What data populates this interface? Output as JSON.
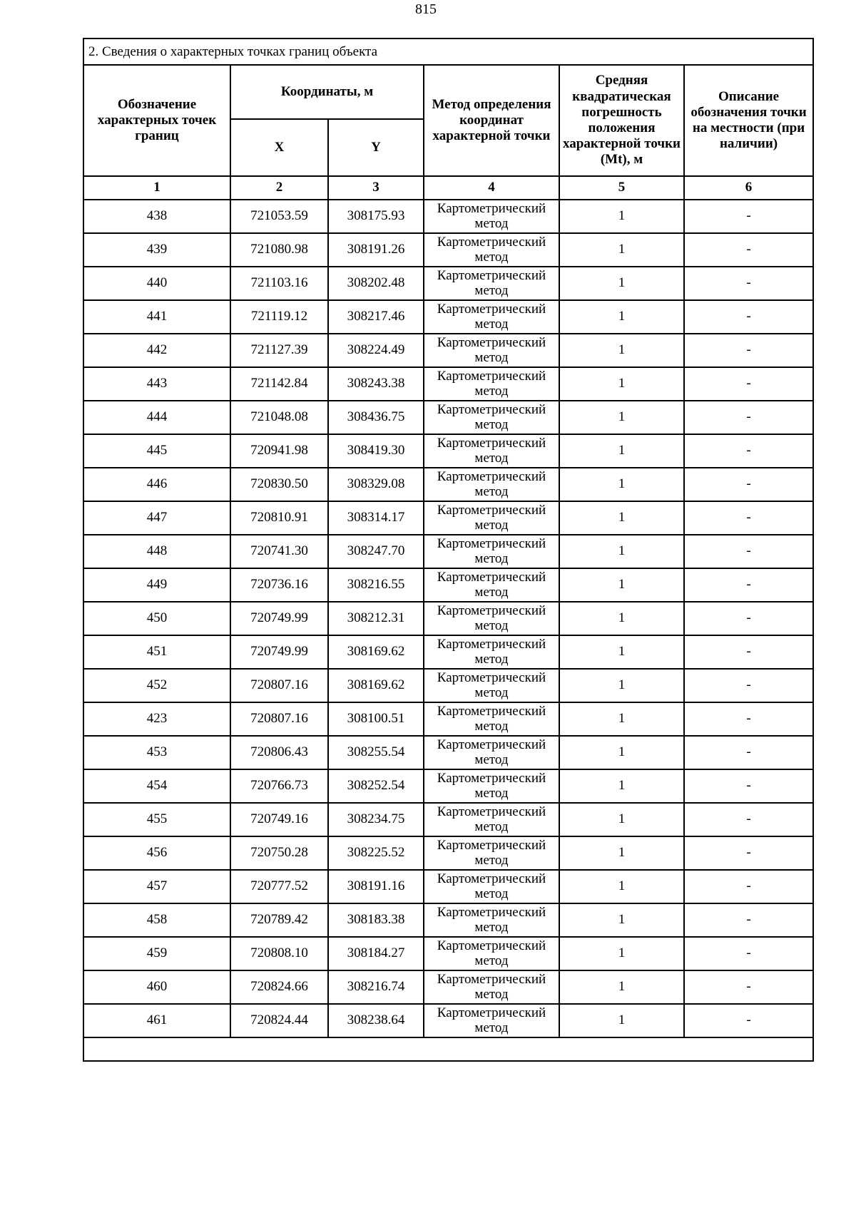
{
  "page": {
    "number": "815"
  },
  "table": {
    "title": "2. Сведения о характерных точках границ объекта",
    "headers": {
      "point": "Обозначение характерных точек границ",
      "coordinates": "Координаты, м",
      "x": "X",
      "y": "Y",
      "method": "Метод определения координат характерной точки",
      "mt": "Средняя квадратическая погрешность положения характерной точки (Mt), м",
      "description": "Описание обозначения точки на местности (при наличии)"
    },
    "column_numbers": [
      "1",
      "2",
      "3",
      "4",
      "5",
      "6"
    ],
    "rows": [
      {
        "point": "438",
        "x": "721053.59",
        "y": "308175.93",
        "method": "Картометрический метод",
        "mt": "1",
        "description": "-"
      },
      {
        "point": "439",
        "x": "721080.98",
        "y": "308191.26",
        "method": "Картометрический метод",
        "mt": "1",
        "description": "-"
      },
      {
        "point": "440",
        "x": "721103.16",
        "y": "308202.48",
        "method": "Картометрический метод",
        "mt": "1",
        "description": "-"
      },
      {
        "point": "441",
        "x": "721119.12",
        "y": "308217.46",
        "method": "Картометрический метод",
        "mt": "1",
        "description": "-"
      },
      {
        "point": "442",
        "x": "721127.39",
        "y": "308224.49",
        "method": "Картометрический метод",
        "mt": "1",
        "description": "-"
      },
      {
        "point": "443",
        "x": "721142.84",
        "y": "308243.38",
        "method": "Картометрический метод",
        "mt": "1",
        "description": "-"
      },
      {
        "point": "444",
        "x": "721048.08",
        "y": "308436.75",
        "method": "Картометрический метод",
        "mt": "1",
        "description": "-"
      },
      {
        "point": "445",
        "x": "720941.98",
        "y": "308419.30",
        "method": "Картометрический метод",
        "mt": "1",
        "description": "-"
      },
      {
        "point": "446",
        "x": "720830.50",
        "y": "308329.08",
        "method": "Картометрический метод",
        "mt": "1",
        "description": "-"
      },
      {
        "point": "447",
        "x": "720810.91",
        "y": "308314.17",
        "method": "Картометрический метод",
        "mt": "1",
        "description": "-"
      },
      {
        "point": "448",
        "x": "720741.30",
        "y": "308247.70",
        "method": "Картометрический метод",
        "mt": "1",
        "description": "-"
      },
      {
        "point": "449",
        "x": "720736.16",
        "y": "308216.55",
        "method": "Картометрический метод",
        "mt": "1",
        "description": "-"
      },
      {
        "point": "450",
        "x": "720749.99",
        "y": "308212.31",
        "method": "Картометрический метод",
        "mt": "1",
        "description": "-"
      },
      {
        "point": "451",
        "x": "720749.99",
        "y": "308169.62",
        "method": "Картометрический метод",
        "mt": "1",
        "description": "-"
      },
      {
        "point": "452",
        "x": "720807.16",
        "y": "308169.62",
        "method": "Картометрический метод",
        "mt": "1",
        "description": "-"
      },
      {
        "point": "423",
        "x": "720807.16",
        "y": "308100.51",
        "method": "Картометрический метод",
        "mt": "1",
        "description": "-"
      },
      {
        "point": "453",
        "x": "720806.43",
        "y": "308255.54",
        "method": "Картометрический метод",
        "mt": "1",
        "description": "-"
      },
      {
        "point": "454",
        "x": "720766.73",
        "y": "308252.54",
        "method": "Картометрический метод",
        "mt": "1",
        "description": "-"
      },
      {
        "point": "455",
        "x": "720749.16",
        "y": "308234.75",
        "method": "Картометрический метод",
        "mt": "1",
        "description": "-"
      },
      {
        "point": "456",
        "x": "720750.28",
        "y": "308225.52",
        "method": "Картометрический метод",
        "mt": "1",
        "description": "-"
      },
      {
        "point": "457",
        "x": "720777.52",
        "y": "308191.16",
        "method": "Картометрический метод",
        "mt": "1",
        "description": "-"
      },
      {
        "point": "458",
        "x": "720789.42",
        "y": "308183.38",
        "method": "Картометрический метод",
        "mt": "1",
        "description": "-"
      },
      {
        "point": "459",
        "x": "720808.10",
        "y": "308184.27",
        "method": "Картометрический метод",
        "mt": "1",
        "description": "-"
      },
      {
        "point": "460",
        "x": "720824.66",
        "y": "308216.74",
        "method": "Картометрический метод",
        "mt": "1",
        "description": "-"
      },
      {
        "point": "461",
        "x": "720824.44",
        "y": "308238.64",
        "method": "Картометрический метод",
        "mt": "1",
        "description": "-"
      }
    ]
  }
}
